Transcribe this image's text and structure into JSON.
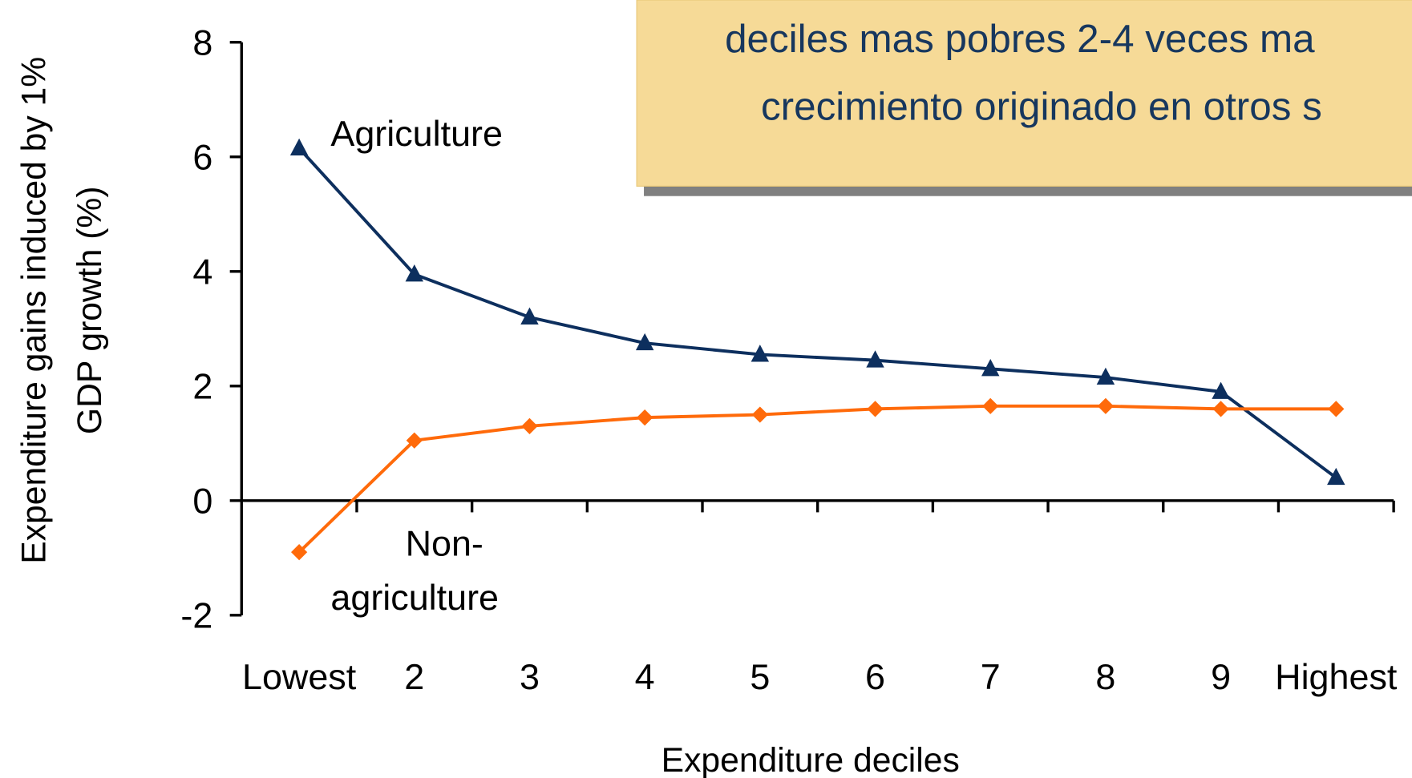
{
  "chart_data": {
    "type": "line",
    "annotation": [
      "deciles mas pobres 2-4 veces ma",
      "crecimiento originado en otros s"
    ],
    "y_label": [
      "Expenditure gains induced by 1%",
      "GDP growth (%)"
    ],
    "x_label": "Expenditure deciles",
    "categories": [
      "Lowest",
      "2",
      "3",
      "4",
      "5",
      "6",
      "7",
      "8",
      "9",
      "Highest"
    ],
    "series": [
      {
        "label": [
          "Agriculture"
        ],
        "color": "#0d2f5e",
        "marker": "triangle",
        "values": [
          6.15,
          3.95,
          3.2,
          2.75,
          2.55,
          2.45,
          2.3,
          2.15,
          1.9,
          0.4
        ]
      },
      {
        "label": [
          "Non-",
          "agriculture"
        ],
        "color": "#ff6a0a",
        "marker": "diamond",
        "values": [
          -0.9,
          1.05,
          1.3,
          1.45,
          1.5,
          1.6,
          1.65,
          1.65,
          1.6,
          1.6
        ]
      }
    ],
    "ylim": [
      -2,
      8
    ],
    "yticks": [
      -2,
      0,
      2,
      4,
      6,
      8
    ],
    "grid": false
  }
}
